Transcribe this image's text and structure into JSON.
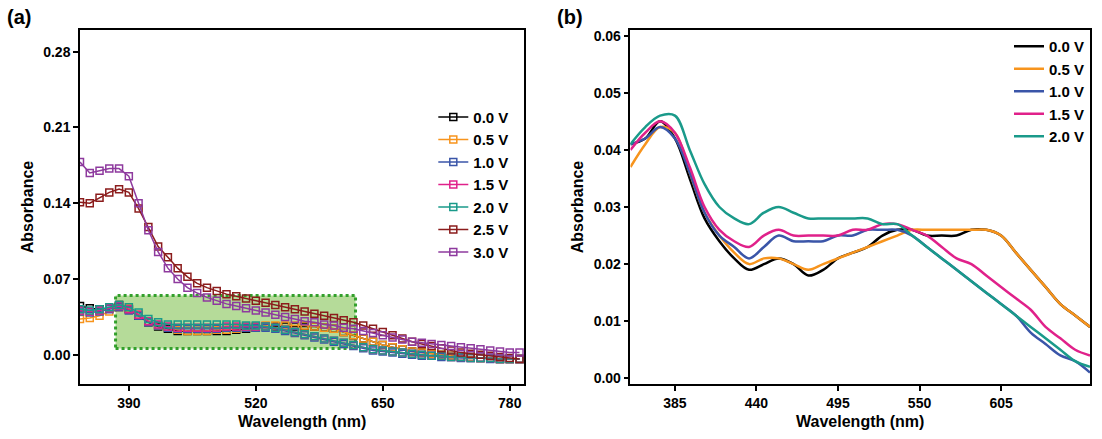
{
  "chart_data": [
    {
      "type": "line",
      "title": "(a)",
      "x_label": "Wavelength (nm)",
      "y_label": "Absorbance",
      "x": [
        340,
        350,
        360,
        370,
        380,
        390,
        400,
        410,
        420,
        430,
        440,
        450,
        460,
        470,
        480,
        490,
        500,
        510,
        520,
        530,
        540,
        550,
        560,
        570,
        580,
        590,
        600,
        610,
        620,
        630,
        640,
        650,
        660,
        670,
        680,
        690,
        700,
        710,
        720,
        730,
        740,
        750,
        760,
        770,
        780,
        790
      ],
      "series": [
        {
          "name": "0.0 V",
          "color": "#000000",
          "values": [
            0.045,
            0.043,
            0.042,
            0.043,
            0.046,
            0.042,
            0.036,
            0.03,
            0.026,
            0.024,
            0.022,
            0.022,
            0.022,
            0.022,
            0.022,
            0.022,
            0.023,
            0.024,
            0.025,
            0.026,
            0.026,
            0.026,
            0.026,
            0.026,
            0.026,
            0.025,
            0.024,
            0.021,
            0.018,
            0.015,
            0.012,
            0.009,
            0.007,
            0.005,
            0.003,
            0.002,
            0.001,
            0.0,
            -0.001,
            -0.002,
            -0.002,
            -0.003,
            -0.003,
            -0.004,
            -0.004,
            -0.004
          ]
        },
        {
          "name": "0.5 V",
          "color": "#f7941d",
          "values": [
            0.033,
            0.034,
            0.036,
            0.04,
            0.044,
            0.043,
            0.037,
            0.031,
            0.027,
            0.025,
            0.023,
            0.022,
            0.022,
            0.022,
            0.023,
            0.023,
            0.024,
            0.025,
            0.026,
            0.027,
            0.027,
            0.027,
            0.027,
            0.027,
            0.026,
            0.025,
            0.024,
            0.021,
            0.018,
            0.015,
            0.012,
            0.009,
            0.007,
            0.005,
            0.003,
            0.002,
            0.001,
            0.0,
            -0.001,
            -0.002,
            -0.002,
            -0.003,
            -0.003,
            -0.004,
            -0.004,
            -0.004
          ]
        },
        {
          "name": "1.0 V",
          "color": "#3a55a8",
          "values": [
            0.04,
            0.039,
            0.04,
            0.042,
            0.044,
            0.041,
            0.036,
            0.03,
            0.027,
            0.025,
            0.024,
            0.024,
            0.024,
            0.024,
            0.024,
            0.025,
            0.025,
            0.025,
            0.025,
            0.025,
            0.024,
            0.022,
            0.02,
            0.018,
            0.016,
            0.014,
            0.012,
            0.01,
            0.008,
            0.006,
            0.004,
            0.003,
            0.002,
            0.001,
            0.0,
            -0.001,
            -0.001,
            -0.002,
            -0.002,
            -0.003,
            -0.003,
            -0.003,
            -0.004,
            -0.004,
            -0.004,
            -0.004
          ]
        },
        {
          "name": "1.5 V",
          "color": "#e0218a",
          "values": [
            0.041,
            0.04,
            0.041,
            0.043,
            0.045,
            0.042,
            0.037,
            0.031,
            0.028,
            0.026,
            0.025,
            0.025,
            0.025,
            0.025,
            0.025,
            0.026,
            0.026,
            0.026,
            0.026,
            0.026,
            0.025,
            0.023,
            0.021,
            0.019,
            0.017,
            0.015,
            0.013,
            0.011,
            0.009,
            0.007,
            0.005,
            0.004,
            0.003,
            0.002,
            0.001,
            0.0,
            -0.001,
            -0.001,
            -0.002,
            -0.002,
            -0.003,
            -0.003,
            -0.003,
            -0.004,
            -0.004,
            -0.004
          ]
        },
        {
          "name": "2.0 V",
          "color": "#1a9a8a",
          "values": [
            0.042,
            0.041,
            0.042,
            0.044,
            0.046,
            0.044,
            0.039,
            0.033,
            0.03,
            0.028,
            0.028,
            0.028,
            0.028,
            0.028,
            0.028,
            0.028,
            0.028,
            0.027,
            0.027,
            0.026,
            0.025,
            0.023,
            0.021,
            0.019,
            0.017,
            0.015,
            0.013,
            0.011,
            0.009,
            0.007,
            0.005,
            0.004,
            0.003,
            0.002,
            0.001,
            0.0,
            -0.001,
            -0.001,
            -0.002,
            -0.002,
            -0.003,
            -0.003,
            -0.003,
            -0.004,
            -0.004,
            -0.004
          ]
        },
        {
          "name": "2.5 V",
          "color": "#8b1c1c",
          "values": [
            0.141,
            0.14,
            0.145,
            0.15,
            0.153,
            0.15,
            0.135,
            0.118,
            0.1,
            0.09,
            0.08,
            0.072,
            0.066,
            0.062,
            0.059,
            0.056,
            0.054,
            0.052,
            0.05,
            0.048,
            0.046,
            0.044,
            0.042,
            0.04,
            0.038,
            0.036,
            0.034,
            0.032,
            0.03,
            0.027,
            0.024,
            0.021,
            0.018,
            0.015,
            0.012,
            0.01,
            0.008,
            0.006,
            0.004,
            0.002,
            0.001,
            0.0,
            -0.001,
            -0.002,
            -0.003,
            -0.004
          ]
        },
        {
          "name": "3.0 V",
          "color": "#8e3a9e",
          "values": [
            0.178,
            0.168,
            0.17,
            0.172,
            0.172,
            0.165,
            0.14,
            0.115,
            0.095,
            0.08,
            0.07,
            0.062,
            0.057,
            0.053,
            0.05,
            0.047,
            0.045,
            0.043,
            0.041,
            0.039,
            0.037,
            0.035,
            0.033,
            0.031,
            0.03,
            0.028,
            0.027,
            0.025,
            0.024,
            0.022,
            0.02,
            0.018,
            0.016,
            0.014,
            0.012,
            0.011,
            0.01,
            0.009,
            0.008,
            0.007,
            0.006,
            0.005,
            0.004,
            0.003,
            0.002,
            0.002
          ]
        }
      ],
      "xlim": [
        340,
        795
      ],
      "ylim": [
        -0.027,
        0.3
      ],
      "xticks": [
        390,
        520,
        650,
        780
      ],
      "yticks": [
        {
          "value": 0,
          "label": "0.00"
        },
        0.07,
        0.14,
        0.21,
        0.28
      ],
      "grid": false,
      "legend": "upper right",
      "marker": "square-open",
      "line_style": "solid"
    },
    {
      "type": "line",
      "title": "(b)",
      "x_label": "Wavelength (nm)",
      "y_label": "Absorbance",
      "x": [
        355,
        365,
        375,
        385,
        395,
        405,
        415,
        425,
        435,
        445,
        455,
        465,
        475,
        485,
        495,
        505,
        515,
        525,
        535,
        545,
        555,
        565,
        575,
        585,
        595,
        605,
        615,
        625,
        635,
        645,
        655,
        665
      ],
      "series": [
        {
          "name": "0.0 V",
          "color": "#000000",
          "values": [
            0.041,
            0.042,
            0.045,
            0.042,
            0.035,
            0.028,
            0.024,
            0.021,
            0.019,
            0.02,
            0.021,
            0.02,
            0.018,
            0.019,
            0.021,
            0.022,
            0.023,
            0.025,
            0.026,
            0.026,
            0.025,
            0.025,
            0.025,
            0.026,
            0.026,
            0.025,
            0.022,
            0.019,
            0.016,
            0.013,
            0.011,
            0.009
          ]
        },
        {
          "name": "0.5 V",
          "color": "#f7941d",
          "values": [
            0.037,
            0.041,
            0.044,
            0.043,
            0.036,
            0.029,
            0.025,
            0.022,
            0.02,
            0.021,
            0.021,
            0.02,
            0.019,
            0.02,
            0.021,
            0.022,
            0.023,
            0.024,
            0.025,
            0.026,
            0.026,
            0.026,
            0.026,
            0.026,
            0.026,
            0.025,
            0.022,
            0.019,
            0.016,
            0.013,
            0.011,
            0.009
          ]
        },
        {
          "name": "1.0 V",
          "color": "#3a55a8",
          "values": [
            0.041,
            0.042,
            0.044,
            0.042,
            0.036,
            0.029,
            0.025,
            0.023,
            0.021,
            0.023,
            0.025,
            0.024,
            0.024,
            0.024,
            0.025,
            0.025,
            0.026,
            0.026,
            0.026,
            0.025,
            0.023,
            0.021,
            0.019,
            0.017,
            0.015,
            0.013,
            0.011,
            0.008,
            0.006,
            0.004,
            0.003,
            0.001
          ]
        },
        {
          "name": "1.5 V",
          "color": "#e0218a",
          "values": [
            0.04,
            0.043,
            0.045,
            0.043,
            0.037,
            0.03,
            0.026,
            0.024,
            0.023,
            0.025,
            0.026,
            0.025,
            0.025,
            0.025,
            0.025,
            0.026,
            0.026,
            0.027,
            0.027,
            0.026,
            0.025,
            0.023,
            0.021,
            0.02,
            0.018,
            0.016,
            0.014,
            0.012,
            0.009,
            0.007,
            0.005,
            0.004
          ]
        },
        {
          "name": "2.0 V",
          "color": "#1a9a8a",
          "values": [
            0.041,
            0.044,
            0.046,
            0.046,
            0.04,
            0.034,
            0.03,
            0.028,
            0.027,
            0.029,
            0.03,
            0.029,
            0.028,
            0.028,
            0.028,
            0.028,
            0.028,
            0.027,
            0.027,
            0.025,
            0.023,
            0.021,
            0.019,
            0.017,
            0.015,
            0.013,
            0.011,
            0.009,
            0.007,
            0.005,
            0.003,
            0.002
          ]
        }
      ],
      "xlim": [
        355,
        665
      ],
      "ylim": [
        -0.001,
        0.061
      ],
      "xticks": [
        385,
        440,
        495,
        550,
        605
      ],
      "yticks": [
        {
          "value": 0,
          "label": "0.00"
        },
        0.01,
        0.02,
        0.03,
        0.04,
        0.05,
        0.06
      ],
      "grid": false,
      "legend": "upper right",
      "line_style": "solid"
    }
  ]
}
